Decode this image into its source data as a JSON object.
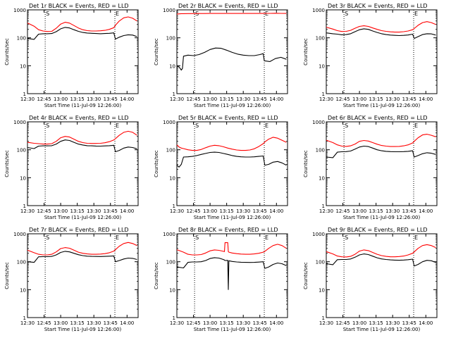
{
  "colors": {
    "events": "#000000",
    "lld": "#ff0000",
    "axes": "#000000",
    "background": "#ffffff"
  },
  "axes": {
    "ylabel": "Counts/sec",
    "xlabel": "Start Time (11-Jul-09 12:26:00)",
    "xlim": [
      750,
      850
    ],
    "ylim": [
      1,
      1000
    ],
    "y_scale": "log",
    "x_ticks": [
      {
        "v": 750,
        "label": "12:30"
      },
      {
        "v": 765,
        "label": "12:45"
      },
      {
        "v": 780,
        "label": "13:00"
      },
      {
        "v": 795,
        "label": "13:15"
      },
      {
        "v": 810,
        "label": "13:30"
      },
      {
        "v": 825,
        "label": "13:45"
      },
      {
        "v": 840,
        "label": "14:00"
      }
    ],
    "y_ticks": [
      {
        "v": 1,
        "label": "1"
      },
      {
        "v": 10,
        "label": "10"
      },
      {
        "v": 100,
        "label": "100"
      },
      {
        "v": 1000,
        "label": "1000"
      }
    ],
    "markers": [
      {
        "v": 766,
        "label": "S"
      },
      {
        "v": 829,
        "label": "E"
      }
    ]
  },
  "chart_data": [
    {
      "type": "line",
      "title": "Det 1r BLACK = Events, RED = LLD",
      "x": [
        750,
        756,
        760,
        764,
        768,
        772,
        776,
        780,
        784,
        788,
        792,
        796,
        800,
        804,
        808,
        812,
        816,
        820,
        824,
        828,
        829.5,
        833,
        837,
        841,
        845,
        849
      ],
      "series": [
        {
          "name": "Events",
          "color": "#000000",
          "y": [
            95,
            88,
            135,
            140,
            140,
            142,
            165,
            210,
            235,
            225,
            195,
            170,
            155,
            148,
            145,
            142,
            140,
            142,
            145,
            150,
            90,
            105,
            120,
            128,
            125,
            110
          ]
        },
        {
          "name": "LLD",
          "color": "#ff0000",
          "y": [
            340,
            260,
            195,
            175,
            168,
            170,
            220,
            310,
            360,
            335,
            275,
            225,
            195,
            180,
            175,
            175,
            178,
            185,
            200,
            230,
            280,
            400,
            520,
            560,
            500,
            400
          ]
        }
      ]
    },
    {
      "type": "line",
      "title": "Det 2r BLACK = Events, RED = LLD",
      "x": [
        750,
        752,
        754,
        755,
        756,
        760,
        765,
        770,
        775,
        780,
        785,
        790,
        795,
        800,
        805,
        810,
        815,
        820,
        825,
        828,
        829,
        834,
        839,
        844,
        849
      ],
      "series": [
        {
          "name": "Events",
          "color": "#000000",
          "y": [
            10,
            9,
            7,
            8,
            22,
            24,
            23,
            25,
            30,
            38,
            43,
            42,
            36,
            30,
            26,
            24,
            23,
            23,
            25,
            27,
            15,
            14,
            18,
            20,
            17
          ]
        },
        {
          "name": "LLD",
          "color": "#ff0000",
          "y": [
            700,
            720,
            730,
            730,
            730,
            735,
            735,
            740,
            740,
            745,
            745,
            745,
            745,
            745,
            745,
            745,
            745,
            745,
            745,
            745,
            745,
            750,
            755,
            750,
            745
          ]
        }
      ]
    },
    {
      "type": "line",
      "title": "Det 3r BLACK = Events, RED = LLD",
      "x": [
        750,
        756,
        760,
        764,
        768,
        772,
        776,
        780,
        784,
        788,
        792,
        796,
        800,
        804,
        808,
        812,
        816,
        820,
        824,
        828,
        829.5,
        833,
        837,
        841,
        845,
        849
      ],
      "series": [
        {
          "name": "Events",
          "color": "#000000",
          "y": [
            150,
            140,
            135,
            128,
            130,
            140,
            165,
            195,
            210,
            200,
            175,
            155,
            140,
            130,
            125,
            122,
            120,
            122,
            126,
            135,
            95,
            110,
            130,
            140,
            138,
            125
          ]
        },
        {
          "name": "LLD",
          "color": "#ff0000",
          "y": [
            240,
            205,
            180,
            168,
            170,
            185,
            220,
            255,
            270,
            255,
            225,
            200,
            180,
            170,
            163,
            160,
            160,
            165,
            175,
            195,
            215,
            280,
            350,
            380,
            350,
            300
          ]
        }
      ]
    },
    {
      "type": "line",
      "title": "Det 4r BLACK = Events, RED = LLD",
      "x": [
        750,
        756,
        760,
        764,
        768,
        772,
        776,
        780,
        784,
        788,
        792,
        796,
        800,
        804,
        808,
        812,
        816,
        820,
        824,
        828,
        829.5,
        833,
        837,
        841,
        845,
        849
      ],
      "series": [
        {
          "name": "Events",
          "color": "#000000",
          "y": [
            120,
            110,
            135,
            138,
            138,
            140,
            160,
            200,
            225,
            215,
            185,
            160,
            148,
            140,
            138,
            136,
            135,
            137,
            140,
            145,
            85,
            95,
            115,
            125,
            120,
            108
          ]
        },
        {
          "name": "LLD",
          "color": "#ff0000",
          "y": [
            185,
            170,
            165,
            160,
            160,
            165,
            200,
            270,
            300,
            285,
            240,
            200,
            180,
            170,
            168,
            168,
            170,
            178,
            195,
            225,
            250,
            330,
            420,
            460,
            420,
            330
          ]
        }
      ]
    },
    {
      "type": "line",
      "title": "Det 5r BLACK = Events, RED = LLD",
      "x": [
        750,
        752,
        754,
        756,
        760,
        764,
        768,
        772,
        776,
        780,
        784,
        788,
        792,
        796,
        800,
        804,
        808,
        812,
        816,
        820,
        824,
        828,
        829.5,
        833,
        837,
        841,
        845,
        849
      ],
      "series": [
        {
          "name": "Events",
          "color": "#000000",
          "y": [
            28,
            24,
            30,
            55,
            56,
            58,
            62,
            68,
            74,
            80,
            82,
            80,
            74,
            68,
            62,
            58,
            56,
            55,
            55,
            56,
            58,
            60,
            28,
            30,
            36,
            38,
            34,
            28
          ]
        },
        {
          "name": "LLD",
          "color": "#ff0000",
          "y": [
            150,
            125,
            115,
            110,
            100,
            95,
            95,
            102,
            118,
            135,
            145,
            140,
            128,
            115,
            105,
            98,
            95,
            95,
            98,
            108,
            130,
            165,
            190,
            240,
            280,
            260,
            220,
            185
          ]
        }
      ]
    },
    {
      "type": "line",
      "title": "Det 6r BLACK = Events, RED = LLD",
      "x": [
        750,
        756,
        760,
        764,
        768,
        772,
        776,
        780,
        784,
        788,
        792,
        796,
        800,
        804,
        808,
        812,
        816,
        820,
        824,
        828,
        829.5,
        833,
        837,
        841,
        845,
        849
      ],
      "series": [
        {
          "name": "Events",
          "color": "#000000",
          "y": [
            55,
            52,
            82,
            85,
            86,
            90,
            105,
            125,
            135,
            130,
            115,
            100,
            92,
            88,
            86,
            85,
            85,
            86,
            88,
            92,
            55,
            62,
            72,
            78,
            75,
            68
          ]
        },
        {
          "name": "LLD",
          "color": "#ff0000",
          "y": [
            220,
            180,
            150,
            135,
            132,
            138,
            160,
            200,
            215,
            205,
            180,
            158,
            142,
            135,
            130,
            130,
            132,
            138,
            150,
            175,
            200,
            270,
            340,
            360,
            330,
            290
          ]
        }
      ]
    },
    {
      "type": "line",
      "title": "Det 7r BLACK = Events, RED = LLD",
      "x": [
        750,
        756,
        760,
        764,
        768,
        772,
        776,
        780,
        784,
        788,
        792,
        796,
        800,
        804,
        808,
        812,
        816,
        820,
        824,
        828,
        829.5,
        833,
        837,
        841,
        845,
        849
      ],
      "series": [
        {
          "name": "Events",
          "color": "#000000",
          "y": [
            100,
            95,
            150,
            152,
            152,
            155,
            175,
            215,
            235,
            225,
            200,
            178,
            165,
            158,
            155,
            154,
            153,
            155,
            158,
            162,
            100,
            110,
            125,
            135,
            132,
            120
          ]
        },
        {
          "name": "LLD",
          "color": "#ff0000",
          "y": [
            260,
            210,
            185,
            175,
            175,
            185,
            225,
            295,
            320,
            305,
            260,
            220,
            200,
            190,
            185,
            185,
            188,
            195,
            210,
            240,
            270,
            360,
            450,
            490,
            450,
            380
          ]
        }
      ]
    },
    {
      "type": "line",
      "title": "Det 8r BLACK = Events, RED = LLD",
      "x": [
        750,
        756,
        760,
        764,
        768,
        772,
        776,
        780,
        784,
        788,
        792,
        793,
        793.5,
        796,
        796.5,
        797,
        800,
        804,
        808,
        812,
        816,
        820,
        824,
        828,
        829.5,
        833,
        837,
        841,
        845,
        849
      ],
      "series": [
        {
          "name": "Events",
          "color": "#000000",
          "y": [
            65,
            60,
            95,
            98,
            98,
            100,
            110,
            130,
            140,
            135,
            120,
            115,
            110,
            112,
            10,
            108,
            102,
            98,
            96,
            95,
            94,
            95,
            97,
            100,
            58,
            65,
            80,
            90,
            85,
            72
          ]
        },
        {
          "name": "LLD",
          "color": "#ff0000",
          "y": [
            270,
            220,
            185,
            175,
            175,
            180,
            205,
            245,
            265,
            255,
            235,
            230,
            480,
            480,
            230,
            220,
            205,
            195,
            188,
            185,
            185,
            190,
            200,
            220,
            235,
            300,
            380,
            420,
            380,
            300
          ]
        }
      ]
    },
    {
      "type": "line",
      "title": "Det 9r BLACK = Events, RED = LLD",
      "x": [
        750,
        756,
        760,
        764,
        768,
        772,
        776,
        780,
        784,
        788,
        792,
        796,
        800,
        804,
        808,
        812,
        816,
        820,
        824,
        828,
        829.5,
        833,
        837,
        841,
        845,
        849
      ],
      "series": [
        {
          "name": "Events",
          "color": "#000000",
          "y": [
            85,
            78,
            118,
            120,
            120,
            125,
            145,
            175,
            190,
            180,
            158,
            138,
            126,
            120,
            116,
            114,
            113,
            115,
            118,
            124,
            70,
            80,
            100,
            112,
            108,
            95
          ]
        },
        {
          "name": "LLD",
          "color": "#ff0000",
          "y": [
            230,
            190,
            160,
            150,
            148,
            155,
            185,
            240,
            265,
            250,
            215,
            185,
            165,
            155,
            150,
            150,
            153,
            160,
            175,
            200,
            225,
            300,
            380,
            410,
            380,
            320
          ]
        }
      ]
    }
  ]
}
